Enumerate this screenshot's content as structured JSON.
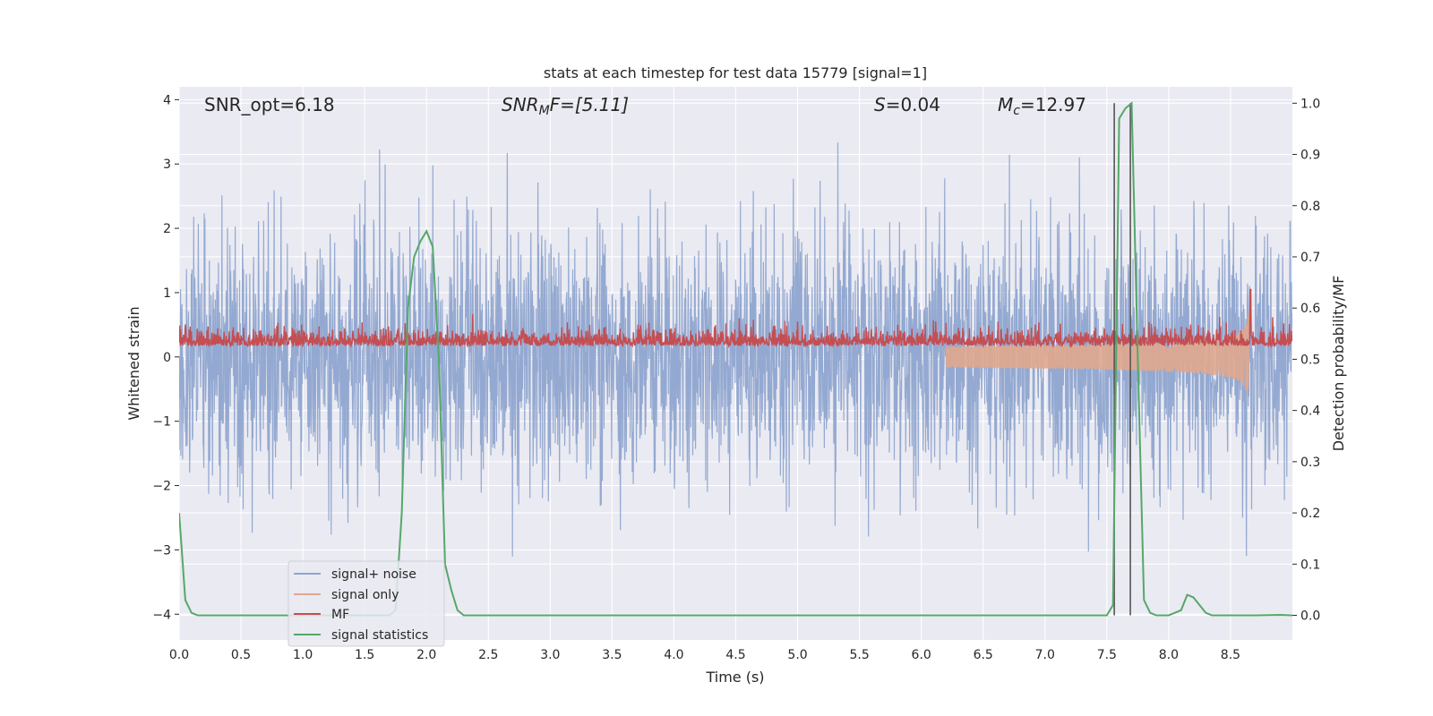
{
  "chart_data": {
    "type": "line",
    "title": "stats at each timestep for test data 15779 [signal=1]",
    "xlabel": "Time (s)",
    "ylabel_left": "Whitened strain",
    "ylabel_right": "Detection probability/MF",
    "xlim": [
      0.0,
      9.0
    ],
    "ylim_left": [
      -4.4,
      4.2
    ],
    "ylim_right": [
      -0.048,
      1.032
    ],
    "x_ticks": [
      "0.0",
      "0.5",
      "1.0",
      "1.5",
      "2.0",
      "2.5",
      "3.0",
      "3.5",
      "4.0",
      "4.5",
      "5.0",
      "5.5",
      "6.0",
      "6.5",
      "7.0",
      "7.5",
      "8.0",
      "8.5"
    ],
    "y_ticks_left": [
      "−4",
      "−3",
      "−2",
      "−1",
      "0",
      "1",
      "2",
      "3",
      "4"
    ],
    "y_ticks_right": [
      "0.0",
      "0.1",
      "0.2",
      "0.3",
      "0.4",
      "0.5",
      "0.6",
      "0.7",
      "0.8",
      "0.9",
      "1.0"
    ],
    "grid": true,
    "legend_position": "lower-left",
    "annotations": {
      "snr_opt": "SNR_opt=6.18",
      "snr_mf_name": "SNR",
      "snr_mf_sub": "M",
      "snr_mf_rest": "F=[5.11]",
      "s_name": "S",
      "s_rest": "=0.04",
      "mc_name": "M",
      "mc_sub": "c",
      "mc_rest": "=12.97"
    },
    "series": [
      {
        "name": "signal+ noise",
        "color": "#8fa5cf",
        "axis": "left",
        "noise_amplitude": 1.0,
        "x_range": [
          0.0,
          9.0
        ]
      },
      {
        "name": "signal only",
        "color": "#e0a78d",
        "axis": "left",
        "merger_time": 8.65,
        "peak_amplitude": 1.0
      },
      {
        "name": "MF",
        "color": "#c44e52",
        "axis": "left",
        "baseline": 0.22,
        "x_range": [
          0.0,
          9.0
        ]
      },
      {
        "name": "signal statistics",
        "color": "#55a868",
        "axis": "right",
        "x": [
          0.0,
          0.05,
          0.1,
          0.15,
          0.2,
          0.3,
          0.5,
          1.0,
          1.5,
          1.7,
          1.75,
          1.8,
          1.85,
          1.9,
          1.95,
          2.0,
          2.05,
          2.1,
          2.15,
          2.2,
          2.25,
          2.3,
          2.5,
          3.0,
          4.0,
          5.0,
          6.0,
          7.0,
          7.45,
          7.5,
          7.55,
          7.6,
          7.65,
          7.7,
          7.75,
          7.8,
          7.85,
          7.9,
          8.0,
          8.1,
          8.15,
          8.2,
          8.25,
          8.3,
          8.35,
          8.4,
          8.5,
          8.7,
          8.9,
          9.0
        ],
        "y": [
          0.2,
          0.03,
          0.005,
          0.0,
          0.0,
          0.0,
          0.0,
          0.0,
          0.0,
          0.0,
          0.01,
          0.2,
          0.6,
          0.7,
          0.73,
          0.75,
          0.72,
          0.5,
          0.1,
          0.05,
          0.01,
          0.0,
          0.0,
          0.0,
          0.0,
          0.0,
          0.0,
          0.0,
          0.0,
          0.0,
          0.02,
          0.97,
          0.99,
          1.0,
          0.5,
          0.03,
          0.005,
          0.0,
          0.0,
          0.01,
          0.04,
          0.035,
          0.02,
          0.005,
          0.0,
          0.0,
          0.0,
          0.0,
          0.001,
          0.0
        ]
      }
    ],
    "vertical_lines": {
      "color": "#555555",
      "x": [
        7.56,
        7.69
      ],
      "y_range": [
        0.0,
        1.0
      ]
    },
    "colors": {
      "plot_bg": "#eaeaf2",
      "grid": "#ffffff",
      "text": "#262626"
    }
  }
}
